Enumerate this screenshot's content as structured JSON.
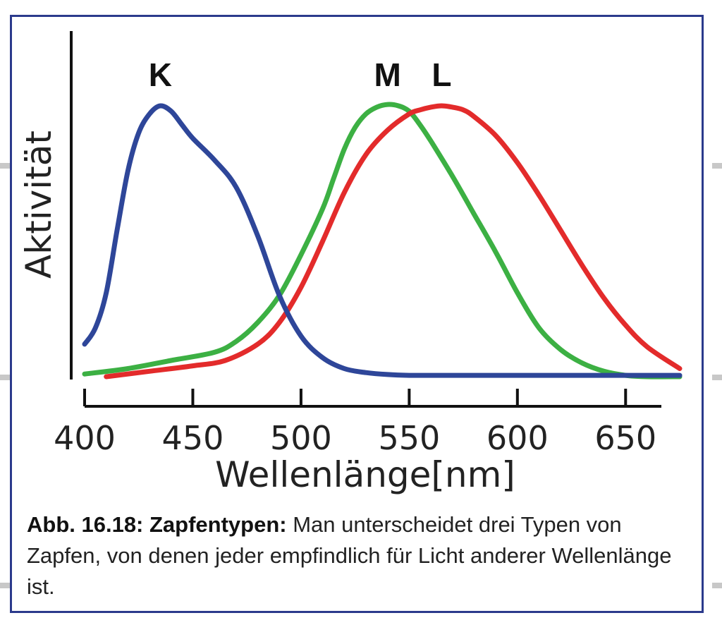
{
  "chart_data": {
    "type": "line",
    "title": "",
    "xlabel": "Wellenlänge[nm]",
    "ylabel": "Aktivität",
    "xlim": [
      400,
      675
    ],
    "ylim": [
      0,
      1
    ],
    "xticks": [
      400,
      450,
      500,
      550,
      600,
      650
    ],
    "grid": false,
    "legend": "inline labels above peaks",
    "series": [
      {
        "name": "K",
        "color": "#2e4699",
        "x": [
          400,
          405,
          410,
          415,
          420,
          425,
          430,
          435,
          440,
          445,
          450,
          460,
          470,
          480,
          490,
          500,
          510,
          520,
          530,
          540,
          550,
          560,
          575,
          600,
          625,
          650,
          675
        ],
        "y": [
          0.12,
          0.18,
          0.31,
          0.54,
          0.76,
          0.9,
          0.97,
          1.0,
          0.98,
          0.93,
          0.88,
          0.8,
          0.7,
          0.52,
          0.3,
          0.15,
          0.07,
          0.03,
          0.015,
          0.008,
          0.005,
          0.005,
          0.005,
          0.005,
          0.005,
          0.005,
          0.005
        ]
      },
      {
        "name": "M",
        "color": "#3cb043",
        "x": [
          400,
          420,
          440,
          460,
          470,
          480,
          490,
          500,
          510,
          515,
          520,
          525,
          530,
          535,
          540,
          545,
          550,
          555,
          560,
          570,
          580,
          590,
          600,
          610,
          620,
          630,
          640,
          650,
          660,
          675
        ],
        "y": [
          0.01,
          0.03,
          0.06,
          0.09,
          0.13,
          0.2,
          0.3,
          0.45,
          0.62,
          0.73,
          0.84,
          0.92,
          0.97,
          0.995,
          1.005,
          1.0,
          0.98,
          0.93,
          0.87,
          0.74,
          0.6,
          0.46,
          0.31,
          0.18,
          0.1,
          0.05,
          0.02,
          0.005,
          0.0,
          0.0
        ]
      },
      {
        "name": "L",
        "color": "#e32b2b",
        "x": [
          410,
          430,
          450,
          465,
          480,
          490,
          500,
          510,
          520,
          530,
          540,
          550,
          555,
          560,
          565,
          570,
          575,
          580,
          590,
          600,
          610,
          620,
          630,
          640,
          650,
          660,
          675
        ],
        "y": [
          0.0,
          0.02,
          0.04,
          0.06,
          0.12,
          0.2,
          0.33,
          0.5,
          0.68,
          0.82,
          0.91,
          0.97,
          0.985,
          0.995,
          1.0,
          0.995,
          0.985,
          0.96,
          0.89,
          0.79,
          0.67,
          0.54,
          0.41,
          0.29,
          0.19,
          0.11,
          0.03
        ]
      }
    ]
  },
  "caption": {
    "label": "Abb. 16.18: Zapfentypen:",
    "text": " Man unterscheidet drei Typen von Zapfen, von denen jeder empfindlich für Licht anderer Wellenlänge ist."
  }
}
